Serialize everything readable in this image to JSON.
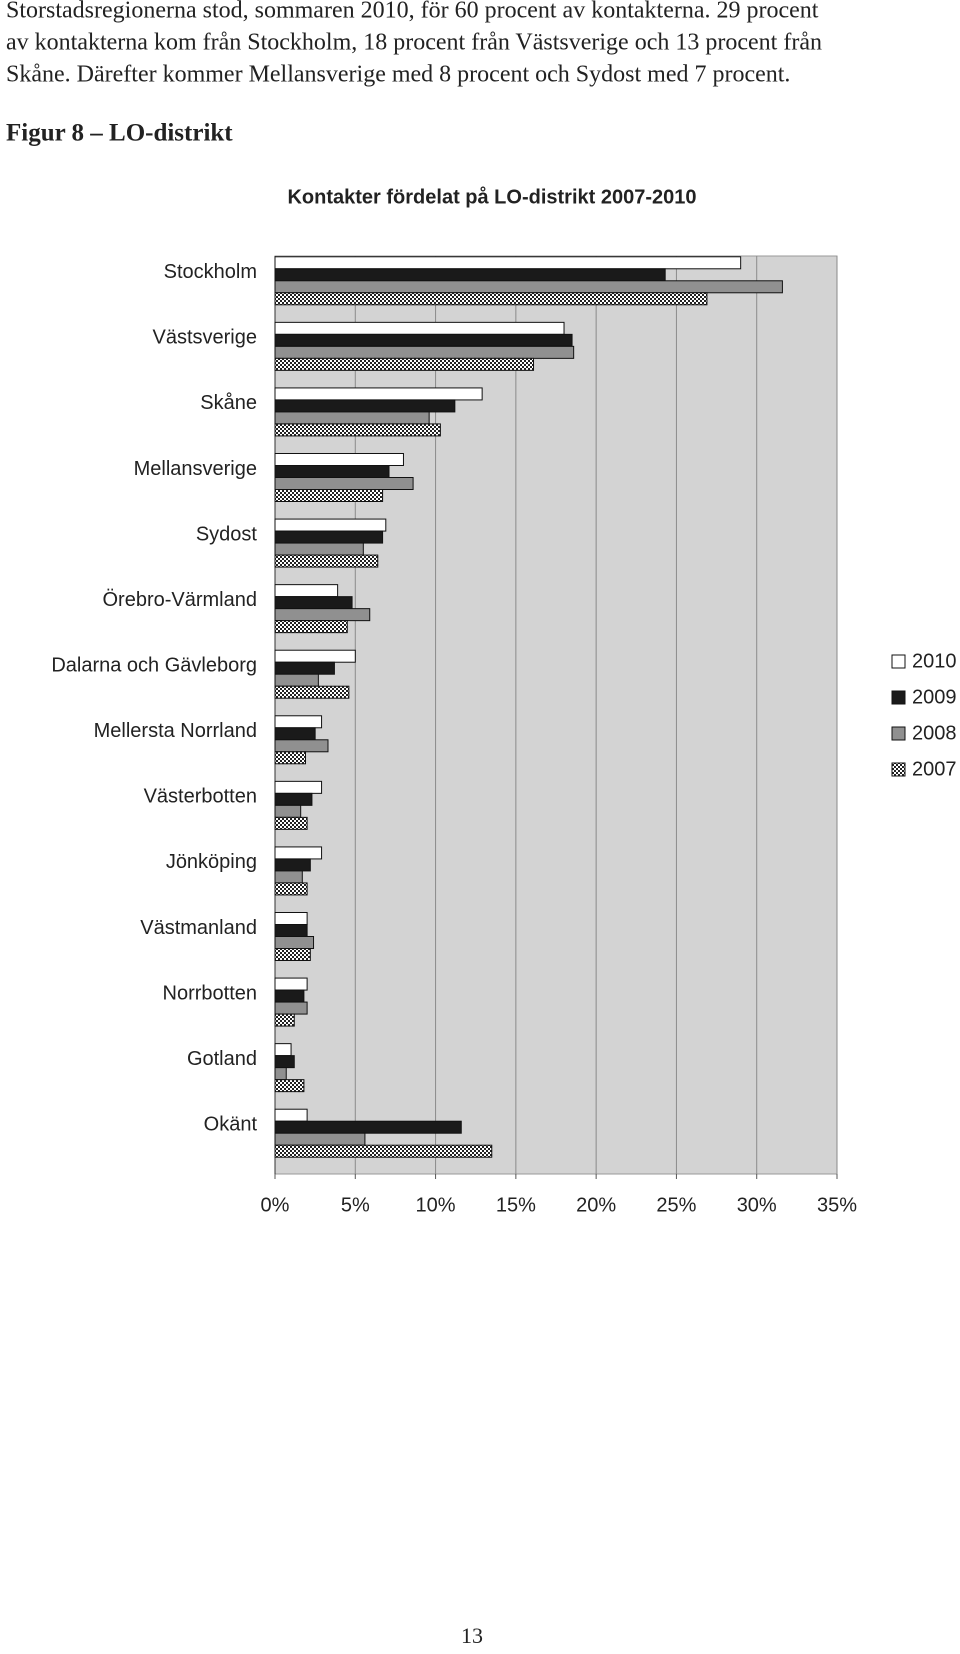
{
  "text": {
    "lines": [
      "Storstadsregionerna stod, sommaren 2010, för 60 procent av kontakterna. 29 procent",
      "av kontakterna kom från Stockholm, 18 procent från Västsverige och 13 procent från",
      "Skåne. Därefter kommer Mellansverige med 8 procent och Sydost med 7 procent."
    ]
  },
  "figure_caption": "Figur 8 – LO-distrikt",
  "chart_data": {
    "type": "hbar",
    "title": "Kontakter fördelat på LO-distrikt 2007-2010",
    "categories": [
      "Stockholm",
      "Västsverige",
      "Skåne",
      "Mellansverige",
      "Sydost",
      "Örebro-Värmland",
      "Dalarna och Gävleborg",
      "Mellersta Norrland",
      "Västerbotten",
      "Jönköping",
      "Västmanland",
      "Norrbotten",
      "Gotland",
      "Okänt"
    ],
    "series": [
      {
        "name": "2010",
        "color": "#ffffff",
        "values": [
          29,
          18,
          12.9,
          8,
          6.9,
          3.9,
          5,
          2.9,
          2.9,
          2.9,
          2.0,
          2.0,
          1.0,
          2.0
        ]
      },
      {
        "name": "2009",
        "color": "#1a1a1a",
        "values": [
          24.3,
          18.5,
          11.2,
          7.1,
          6.7,
          4.8,
          3.7,
          2.5,
          2.3,
          2.2,
          2.0,
          1.8,
          1.2,
          11.6
        ]
      },
      {
        "name": "2008",
        "color": "#909090",
        "values": [
          31.6,
          18.6,
          9.6,
          8.6,
          5.5,
          5.9,
          2.7,
          3.3,
          1.6,
          1.7,
          2.4,
          2.0,
          0.7,
          5.6
        ]
      },
      {
        "name": "2007",
        "color": "#222222",
        "pattern": "checker",
        "values": [
          26.9,
          16.1,
          10.3,
          6.7,
          6.4,
          4.5,
          4.6,
          1.9,
          2.0,
          2.0,
          2.2,
          1.2,
          1.8,
          13.5
        ]
      }
    ],
    "xlim": [
      0,
      35
    ],
    "xticks": [
      {
        "value": 0,
        "label": "0%"
      },
      {
        "value": 5,
        "label": "5%"
      },
      {
        "value": 10,
        "label": "10%"
      },
      {
        "value": 15,
        "label": "15%"
      },
      {
        "value": 20,
        "label": "20%"
      },
      {
        "value": 25,
        "label": "25%"
      },
      {
        "value": 30,
        "label": "30%"
      },
      {
        "value": 35,
        "label": "35%"
      }
    ],
    "grid": true,
    "legend": "right"
  },
  "page_number": "13"
}
